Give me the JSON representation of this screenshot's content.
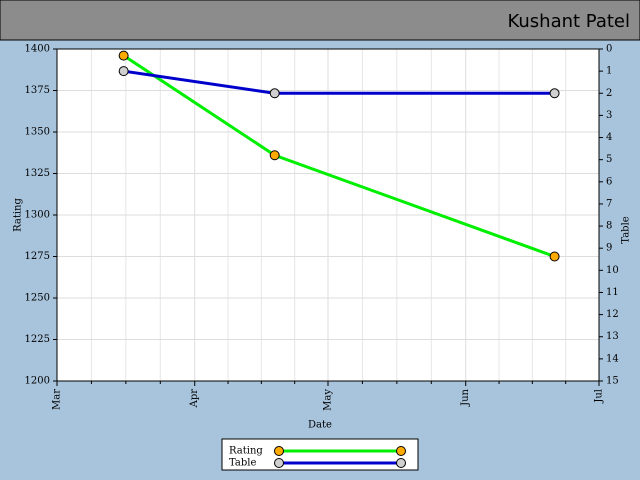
{
  "header": {
    "title": "Kushant Patel"
  },
  "chart_data": {
    "type": "line",
    "x_label": "Date",
    "y_label": "Rating",
    "y2_label": "Table",
    "x": [
      15,
      49,
      112
    ],
    "xlim": [
      0,
      122
    ],
    "xticks": [
      {
        "value": 0,
        "label": "Mar"
      },
      {
        "value": 31,
        "label": "Apr"
      },
      {
        "value": 61,
        "label": "May"
      },
      {
        "value": 92,
        "label": "Jun"
      },
      {
        "value": 122,
        "label": "Jul"
      }
    ],
    "ylim": [
      1200,
      1400
    ],
    "yticks": [
      1200,
      1225,
      1250,
      1275,
      1300,
      1325,
      1350,
      1375,
      1400
    ],
    "y2lim": [
      15,
      0
    ],
    "y2ticks": [
      0,
      1,
      2,
      3,
      4,
      5,
      6,
      7,
      8,
      9,
      10,
      11,
      12,
      13,
      14,
      15
    ],
    "grid": true,
    "legend": "bottom",
    "series": [
      {
        "name": "Rating",
        "color": "#00ee00",
        "marker_color": "#ffaa00",
        "values": [
          1396,
          1336,
          1275
        ]
      },
      {
        "name": "Table",
        "color": "#0000cc",
        "marker_color": "#d0d0d0",
        "axis": "y2",
        "values": [
          1,
          2,
          2
        ]
      }
    ]
  }
}
